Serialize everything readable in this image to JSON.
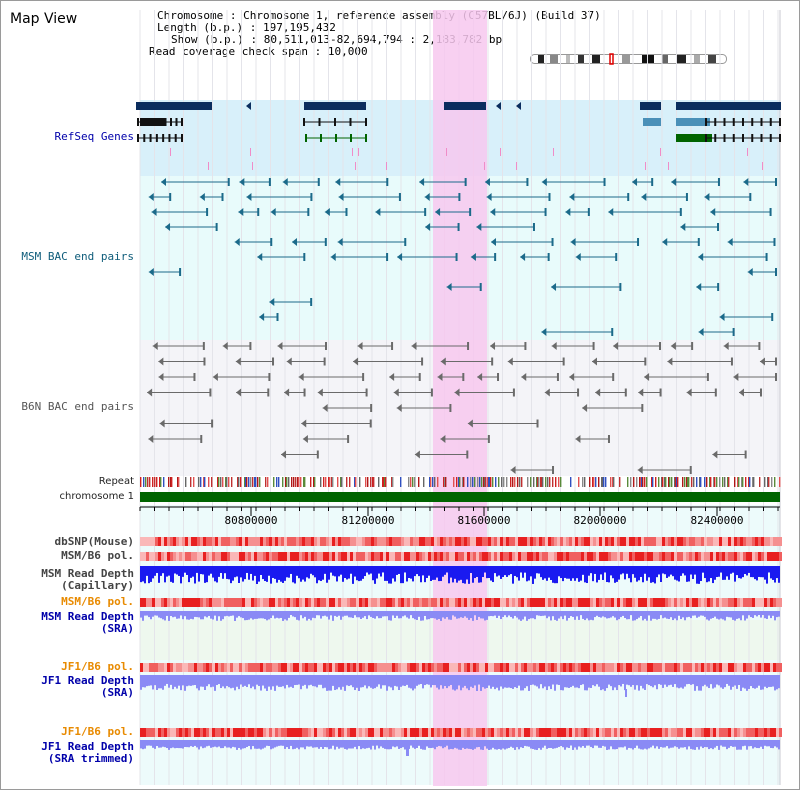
{
  "title": "Map View",
  "info": {
    "chromosome_label": "Chromosome",
    "chromosome_value": "Chromosome 1, reference assembly (C57BL/6J) (Build 37)",
    "length_label": "Length (b.p.)",
    "length_value": "197,195,432",
    "show_label": "Show (b.p.)",
    "show_value": "80,511,013-82,694,794 : 2,183,782 bp",
    "coverage_label": "Read coverage check span",
    "coverage_value": "10,000"
  },
  "ruler": {
    "ticks": [
      "80800000",
      "81200000",
      "81600000",
      "82000000",
      "82400000"
    ]
  },
  "tracks": {
    "refseq": "RefSeq Genes",
    "msm_bac": "MSM BAC end pairs",
    "b6n_bac": "B6N BAC end pairs",
    "repeat": "Repeat",
    "chromosome": "chromosome 1",
    "dbsnp": "dbSNP(Mouse)",
    "msm_b6_pol_1": "MSM/B6 pol.",
    "msm_read_depth_cap_1": "MSM Read Depth",
    "msm_read_depth_cap_2": "(Capillary)",
    "msm_b6_pol_2": "MSM/B6 pol.",
    "msm_read_depth_sra_1": "MSM Read Depth",
    "msm_read_depth_sra_2": "(SRA)",
    "jf1_b6_pol_1": "JF1/B6 pol.",
    "jf1_read_depth_sra_1": "JF1 Read Depth",
    "jf1_read_depth_sra_2": "(SRA)",
    "jf1_b6_pol_2": "JF1/B6 pol.",
    "jf1_read_depth_trim_1": "JF1 Read Depth",
    "jf1_read_depth_trim_2": "(SRA trimmed)"
  },
  "colors": {
    "highlight": "#f7c8ef",
    "refseq_bg": "#d8f0fa",
    "bac_bg": "#e8fbfb",
    "gene_dark": "#0b2d5e",
    "gene_light": "#4a90b8",
    "gene_green": "#006400",
    "msm_bac": "#1b6a8a",
    "b6n_bac": "#6a6a6a",
    "chromosome_bar": "#006400",
    "snp_red": "#e83030",
    "depth_blue": "#1a1af0",
    "depth_light_blue": "#8a8af5"
  }
}
